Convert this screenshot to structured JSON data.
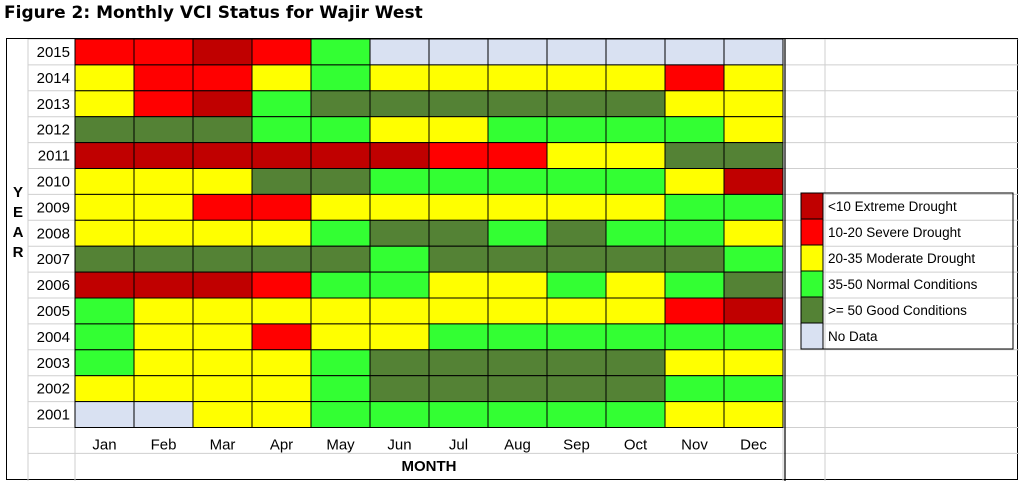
{
  "title": "Figure 2: Monthly VCI Status for Wajir West",
  "chart_data": {
    "type": "heatmap",
    "xlabel": "MONTH",
    "ylabel": "YEAR",
    "months": [
      "Jan",
      "Feb",
      "Mar",
      "Apr",
      "May",
      "Jun",
      "Jul",
      "Aug",
      "Sep",
      "Oct",
      "Nov",
      "Dec"
    ],
    "years": [
      "2015",
      "2014",
      "2013",
      "2012",
      "2011",
      "2010",
      "2009",
      "2008",
      "2007",
      "2006",
      "2005",
      "2004",
      "2003",
      "2002",
      "2001"
    ],
    "categories": [
      {
        "code": "E",
        "label": "<10 Extreme Drought",
        "color": "#c00000"
      },
      {
        "code": "S",
        "label": "10-20 Severe Drought",
        "color": "#ff0000"
      },
      {
        "code": "M",
        "label": "20-35 Moderate Drought",
        "color": "#ffff00"
      },
      {
        "code": "N",
        "label": "35-50 Normal Conditions",
        "color": "#33ff33"
      },
      {
        "code": "G",
        "label": ">= 50 Good Conditions",
        "color": "#548235"
      },
      {
        "code": "X",
        "label": "No Data",
        "color": "#d9e1f2"
      }
    ],
    "status": [
      [
        "S",
        "S",
        "E",
        "S",
        "N",
        "X",
        "X",
        "X",
        "X",
        "X",
        "X",
        "X"
      ],
      [
        "M",
        "S",
        "S",
        "M",
        "N",
        "M",
        "M",
        "M",
        "M",
        "M",
        "S",
        "M"
      ],
      [
        "M",
        "S",
        "E",
        "N",
        "G",
        "G",
        "G",
        "G",
        "G",
        "G",
        "M",
        "M"
      ],
      [
        "G",
        "G",
        "G",
        "N",
        "N",
        "M",
        "M",
        "N",
        "N",
        "N",
        "N",
        "M"
      ],
      [
        "E",
        "E",
        "E",
        "E",
        "E",
        "E",
        "S",
        "S",
        "M",
        "M",
        "G",
        "G"
      ],
      [
        "M",
        "M",
        "M",
        "G",
        "G",
        "N",
        "N",
        "N",
        "N",
        "N",
        "M",
        "E"
      ],
      [
        "M",
        "M",
        "S",
        "S",
        "M",
        "M",
        "M",
        "M",
        "M",
        "M",
        "N",
        "N"
      ],
      [
        "M",
        "M",
        "M",
        "M",
        "N",
        "G",
        "G",
        "N",
        "G",
        "N",
        "N",
        "M"
      ],
      [
        "G",
        "G",
        "G",
        "G",
        "G",
        "N",
        "G",
        "G",
        "G",
        "G",
        "G",
        "N"
      ],
      [
        "E",
        "E",
        "E",
        "S",
        "N",
        "N",
        "M",
        "M",
        "N",
        "M",
        "N",
        "G"
      ],
      [
        "N",
        "M",
        "M",
        "M",
        "M",
        "M",
        "M",
        "M",
        "M",
        "M",
        "S",
        "E"
      ],
      [
        "N",
        "M",
        "M",
        "S",
        "M",
        "M",
        "N",
        "N",
        "N",
        "N",
        "N",
        "N"
      ],
      [
        "N",
        "M",
        "M",
        "M",
        "N",
        "G",
        "G",
        "G",
        "G",
        "G",
        "M",
        "M"
      ],
      [
        "M",
        "M",
        "M",
        "M",
        "N",
        "G",
        "G",
        "G",
        "G",
        "G",
        "N",
        "N"
      ],
      [
        "X",
        "X",
        "M",
        "M",
        "N",
        "N",
        "N",
        "N",
        "N",
        "N",
        "M",
        "M"
      ]
    ]
  }
}
